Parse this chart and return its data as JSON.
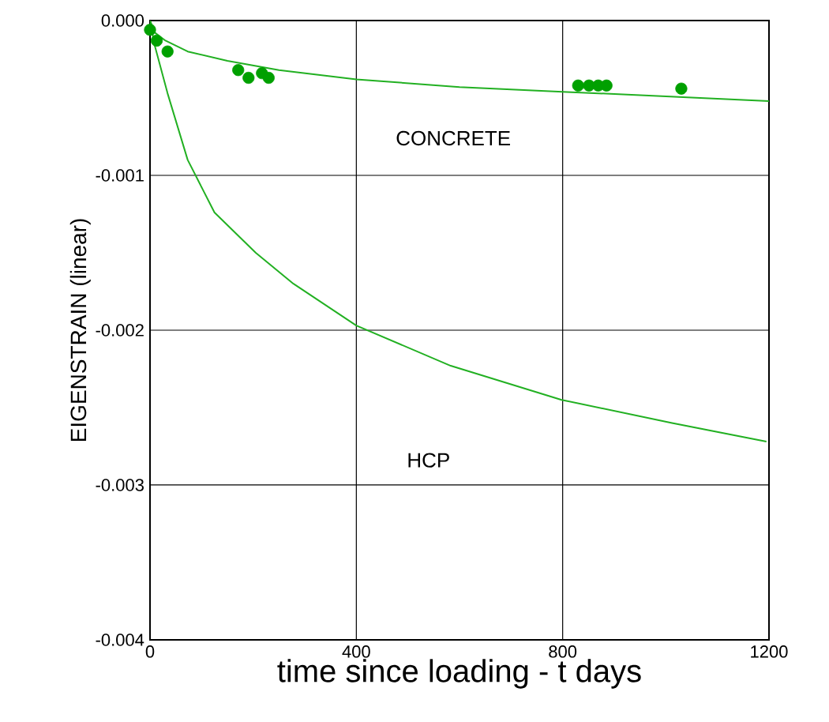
{
  "chart_data": {
    "type": "line",
    "xlabel": "time since loading - t days",
    "ylabel": "EIGENSTRAIN  (linear)",
    "xlim": [
      0,
      1200
    ],
    "ylim": [
      -0.004,
      0
    ],
    "xticks": [
      0,
      400,
      800,
      1200
    ],
    "yticks": [
      {
        "value": -0.004,
        "label": "-0.004"
      },
      {
        "value": -0.003,
        "label": "-0.003"
      },
      {
        "value": -0.002,
        "label": "-0.002"
      },
      {
        "value": -0.001,
        "label": "-0.001"
      },
      {
        "value": 0,
        "label": "0.000"
      }
    ],
    "grid": true,
    "series": [
      {
        "color": "#22b022",
        "x": [
          0,
          10,
          30,
          73,
          150,
          250,
          400,
          600,
          800,
          1000,
          1200
        ],
        "values": [
          0,
          -8e-05,
          -0.00013,
          -0.0002,
          -0.00026,
          -0.00032,
          -0.00038,
          -0.00043,
          -0.00046,
          -0.00049,
          -0.00052
        ]
      },
      {
        "color": "#22b022",
        "x": [
          0,
          9,
          34,
          73,
          125,
          205,
          278,
          400,
          583,
          798,
          1012,
          1195
        ],
        "values": [
          0,
          -0.00016,
          -0.00047,
          -0.0009,
          -0.00124,
          -0.0015,
          -0.0017,
          -0.00197,
          -0.00223,
          -0.00245,
          -0.0026,
          -0.00272
        ]
      },
      {
        "type": "scatter",
        "color": "#00a000",
        "marker": "circle",
        "x": [
          0,
          13,
          34,
          171,
          191,
          217,
          230,
          830,
          851,
          869,
          885,
          1030
        ],
        "values": [
          -6e-05,
          -0.00013,
          -0.0002,
          -0.00032,
          -0.00037,
          -0.00034,
          -0.00037,
          -0.00042,
          -0.00042,
          -0.00042,
          -0.00042,
          -0.00044
        ]
      }
    ],
    "annotations": [
      "CONCRETE",
      "HCP"
    ]
  }
}
